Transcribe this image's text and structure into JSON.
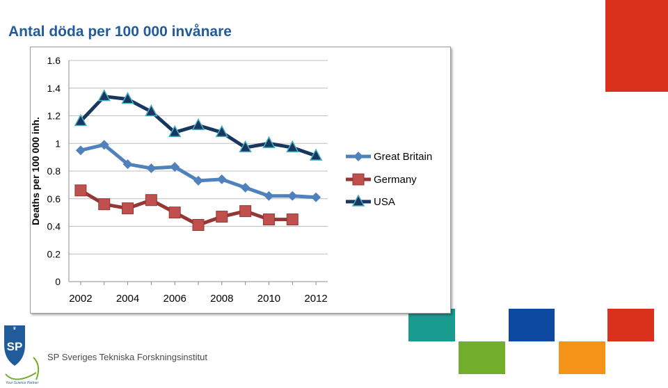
{
  "page": {
    "title": "Antal döda per 100 000 invånare"
  },
  "footer": {
    "logo_text": "SP",
    "logo_tagline": "Your Science Partner",
    "org_name": "SP Sveriges Tekniska Forskningsinstitut"
  },
  "colors": {
    "title": "#1f5c99",
    "gb": "#4f81bd",
    "de": "#953735",
    "usa": "#17375e",
    "red": "#d9311c",
    "teal": "#1a9b8f",
    "blue": "#0b4aa0",
    "green": "#73ae2a",
    "orange": "#f39418"
  },
  "chart_data": {
    "type": "line",
    "title": "",
    "xlabel": "",
    "ylabel": "Deaths per 100 000 inh.",
    "ylim": [
      0,
      1.6
    ],
    "xlim": [
      2001.5,
      2012.5
    ],
    "yticks": [
      "0",
      "0.2",
      "0.4",
      "0.6",
      "0.8",
      "1",
      "1.2",
      "1.4",
      "1.6"
    ],
    "xticks": [
      "2002",
      "2004",
      "2006",
      "2008",
      "2010",
      "2012"
    ],
    "grid": true,
    "legend_position": "right",
    "series": [
      {
        "name": "Great Britain",
        "marker": "diamond",
        "color": "#4f81bd",
        "x": [
          2002,
          2003,
          2004,
          2005,
          2006,
          2007,
          2008,
          2009,
          2010,
          2011,
          2012
        ],
        "values": [
          0.95,
          0.99,
          0.85,
          0.82,
          0.83,
          0.73,
          0.74,
          0.68,
          0.62,
          0.62,
          0.61
        ]
      },
      {
        "name": "Germany",
        "marker": "square",
        "color": "#953735",
        "x": [
          2002,
          2003,
          2004,
          2005,
          2006,
          2007,
          2008,
          2009,
          2010,
          2011
        ],
        "values": [
          0.66,
          0.56,
          0.53,
          0.59,
          0.5,
          0.41,
          0.47,
          0.51,
          0.45,
          0.45
        ]
      },
      {
        "name": "USA",
        "marker": "triangle",
        "color": "#17375e",
        "x": [
          2002,
          2003,
          2004,
          2005,
          2006,
          2007,
          2008,
          2009,
          2010,
          2011,
          2012
        ],
        "values": [
          1.16,
          1.34,
          1.32,
          1.23,
          1.08,
          1.13,
          1.08,
          0.97,
          1.0,
          0.97,
          0.91
        ]
      }
    ]
  }
}
